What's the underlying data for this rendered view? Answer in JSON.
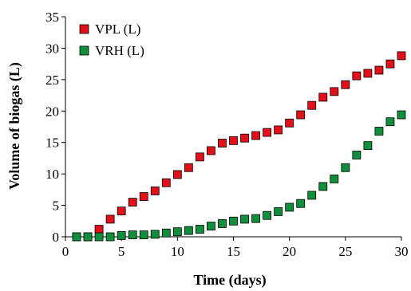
{
  "chart_data": {
    "type": "scatter",
    "xlabel": "Time (days)",
    "ylabel": "Volume of biogas (L)",
    "xlim": [
      0,
      30
    ],
    "ylim": [
      0,
      35
    ],
    "xticks": [
      "0",
      "5",
      "10",
      "15",
      "20",
      "25",
      "30"
    ],
    "yticks": [
      "0",
      "5",
      "10",
      "15",
      "20",
      "25",
      "30",
      "35"
    ],
    "grid": false,
    "legend": "top-left",
    "x": [
      1,
      2,
      3,
      4,
      5,
      6,
      7,
      8,
      9,
      10,
      11,
      12,
      13,
      14,
      15,
      16,
      17,
      18,
      19,
      20,
      21,
      22,
      23,
      24,
      25,
      26,
      27,
      28,
      29,
      30
    ],
    "series": [
      {
        "name": "VPL (L)",
        "color": "#e3101a",
        "marker": "square",
        "values": [
          0.0,
          0.0,
          1.2,
          2.8,
          4.1,
          5.5,
          6.4,
          7.3,
          8.6,
          9.9,
          11.0,
          12.7,
          13.7,
          14.9,
          15.3,
          15.7,
          16.1,
          16.6,
          17.0,
          18.1,
          19.4,
          20.9,
          22.2,
          23.1,
          24.2,
          25.6,
          26.0,
          26.5,
          27.5,
          28.8
        ]
      },
      {
        "name": "VRH (L)",
        "color": "#0f8f3c",
        "marker": "square",
        "values": [
          0.0,
          0.0,
          0.0,
          0.0,
          0.2,
          0.3,
          0.3,
          0.4,
          0.6,
          0.8,
          1.0,
          1.2,
          1.7,
          2.1,
          2.5,
          2.8,
          2.9,
          3.4,
          4.0,
          4.7,
          5.3,
          6.6,
          8.0,
          9.2,
          11.0,
          13.0,
          14.5,
          16.8,
          18.3,
          19.4
        ]
      }
    ]
  }
}
